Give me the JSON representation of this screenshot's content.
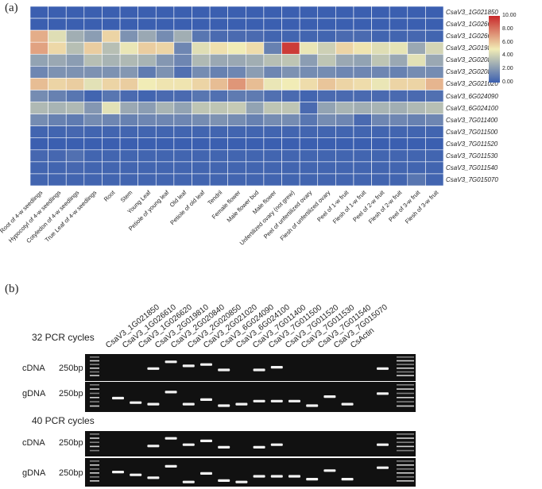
{
  "panel_a": {
    "label": "(a)",
    "rows": [
      "CsaV3_1G021850",
      "CsaV3_1G026610",
      "CsaV3_1G026620",
      "CsaV3_2G019810",
      "CsaV3_2G020840",
      "CsaV3_2G020850",
      "CsaV3_2G021020",
      "CsaV3_6G024090",
      "CsaV3_6G024100",
      "CsaV3_7G011400",
      "CsaV3_7G011500",
      "CsaV3_7G011520",
      "CsaV3_7G011530",
      "CsaV3_7G011540",
      "CsaV3_7G015070"
    ],
    "columns": [
      "Root of 4-w seedlings",
      "Hypocotyl of 4-w seedlings",
      "Cotyledon of 4-w seedlings",
      "True Leaf of 4-w seedlings",
      "Root",
      "Stem",
      "Young Leaf",
      "Petiole of young leaf",
      "Old leaf",
      "Petiole of old leaf",
      "Tendril",
      "Female flower",
      "Male flower bud",
      "Male flower",
      "Unfertilized ovary (not grew)",
      "Peel of unfertilized ovary",
      "Flesh of unfertilized ovary",
      "Peel of 1-w fruit",
      "Flesh of 1-w fruit",
      "Peel of 2-w fruit",
      "Flesh of 2-w fruit",
      "Peel of 3-w fruit",
      "Flesh of 3-w fruit"
    ],
    "colorbar": {
      "ticks": [
        "10.00",
        "8.00",
        "6.00",
        "4.00",
        "2.00",
        "0.00"
      ],
      "low": "#3b5fb0",
      "mid": "#f1ecb6",
      "high": "#c8282a"
    },
    "values": [
      [
        0,
        0,
        0,
        0,
        0,
        0,
        0,
        0,
        0,
        0,
        0,
        0,
        0,
        0,
        0,
        0,
        0,
        0,
        0,
        0,
        0,
        0,
        0
      ],
      [
        0,
        0,
        0,
        0,
        0,
        0,
        0,
        0,
        0,
        0,
        0,
        0,
        0,
        0,
        0,
        0,
        0,
        0,
        0,
        0,
        0,
        0,
        0
      ],
      [
        6.6,
        4.5,
        2.8,
        2.2,
        5.6,
        1.8,
        2.6,
        1.6,
        2.8,
        0.8,
        0.4,
        0.4,
        0.4,
        0.2,
        0.2,
        0.2,
        0.2,
        0.4,
        0.4,
        0.2,
        0.2,
        0.3,
        0.2
      ],
      [
        6.9,
        5.5,
        3.4,
        5.8,
        3.4,
        4.8,
        5.8,
        5.6,
        1.4,
        4.5,
        5.3,
        5.0,
        5.4,
        1.2,
        9.5,
        4.8,
        4.0,
        5.6,
        5.2,
        4.5,
        4.7,
        2.6,
        4.2
      ],
      [
        2.4,
        2.6,
        2.2,
        3.4,
        3.0,
        3.2,
        3.0,
        2.0,
        1.4,
        3.2,
        2.6,
        2.6,
        2.8,
        3.4,
        3.6,
        2.2,
        3.6,
        2.6,
        2.4,
        3.6,
        2.6,
        4.6,
        2.6
      ],
      [
        1.4,
        1.8,
        1.8,
        1.8,
        1.8,
        2.0,
        1.0,
        1.8,
        0.6,
        1.6,
        1.2,
        1.4,
        2.2,
        1.4,
        1.8,
        1.6,
        1.6,
        1.4,
        1.4,
        1.4,
        1.2,
        1.6,
        1.6
      ],
      [
        6.2,
        5.6,
        5.8,
        4.6,
        5.6,
        5.8,
        5.0,
        5.2,
        5.2,
        5.6,
        6.2,
        7.2,
        6.2,
        4.8,
        5.0,
        5.4,
        6.0,
        5.6,
        5.4,
        4.8,
        5.6,
        5.6,
        6.4
      ],
      [
        1.6,
        1.2,
        0.8,
        0.2,
        0.8,
        0.4,
        0.2,
        0.4,
        0.4,
        0.8,
        0.6,
        1.0,
        1.0,
        0.6,
        0.4,
        0.2,
        0.4,
        0.4,
        0.4,
        0.4,
        0.4,
        0.4,
        0.6
      ],
      [
        3.2,
        3.0,
        3.2,
        2.0,
        4.6,
        2.6,
        2.2,
        3.0,
        2.4,
        3.6,
        3.6,
        3.8,
        2.4,
        3.6,
        3.6,
        0.4,
        2.4,
        3.0,
        2.8,
        3.0,
        2.8,
        3.2,
        3.4
      ],
      [
        1.6,
        1.2,
        1.0,
        1.6,
        1.4,
        1.2,
        1.4,
        1.4,
        1.4,
        1.6,
        1.8,
        1.6,
        1.2,
        1.6,
        1.6,
        0.8,
        1.6,
        1.4,
        0.4,
        1.4,
        1.4,
        1.2,
        1.4
      ],
      [
        0.2,
        0.2,
        0.3,
        0.2,
        0.2,
        0.2,
        0.2,
        0.2,
        0.2,
        0.2,
        0.2,
        0.2,
        0.2,
        0.2,
        0.2,
        0.2,
        0.2,
        0.2,
        0.2,
        0.2,
        0.2,
        0.2,
        0.2
      ],
      [
        0,
        0,
        0,
        0,
        0,
        0,
        0,
        0,
        0,
        0,
        0,
        0,
        0,
        0,
        0,
        0,
        0,
        0,
        0,
        0,
        0,
        0,
        0
      ],
      [
        0.3,
        0.3,
        0.6,
        0.2,
        0.2,
        0.2,
        0.2,
        0.2,
        0.2,
        0.2,
        0.2,
        0.2,
        0.2,
        0.2,
        0.2,
        0.2,
        0.2,
        0.2,
        0.2,
        0.2,
        0.2,
        0.2,
        0.2
      ],
      [
        0.2,
        0.2,
        0.3,
        0.2,
        0.2,
        0.2,
        0.2,
        0.2,
        0.2,
        0.2,
        0.2,
        0.2,
        0.2,
        0.2,
        0.2,
        0.2,
        0.2,
        0.2,
        0.2,
        0.2,
        0.2,
        0.2,
        0.2
      ],
      [
        0.2,
        0.2,
        0.2,
        0.2,
        0.2,
        0.2,
        0.2,
        0.2,
        0.2,
        0.2,
        0.2,
        0.2,
        0.2,
        0.2,
        0.2,
        0.2,
        0.2,
        0.2,
        0.2,
        0.2,
        0.2,
        0.8,
        0.2
      ]
    ]
  },
  "panel_b": {
    "label": "(b)",
    "lanes": [
      "CsaV3_1G021850",
      "CsaV3_1G026610",
      "CsaV3_1G026620",
      "CsaV3_2G019810",
      "CsaV3_2G020840",
      "CsaV3_2G020850",
      "CsaV3_2G021020",
      "CsaV3_6G024090",
      "CsaV3_6G024100",
      "CsaV3_7G011400",
      "CsaV3_7G011500",
      "CsaV3_7G011520",
      "CsaV3_7G011530",
      "CsaV3_7G011540",
      "CsaV3_7G015070",
      "CsActin"
    ],
    "cycles_32": "32 PCR cycles",
    "cycles_40": "40 PCR cycles",
    "cdna_label": "cDNA",
    "gdna_label": "gDNA",
    "marker_label": "250bp",
    "gels": {
      "c32": [
        null,
        null,
        0.55,
        0.3,
        0.45,
        0.4,
        0.6,
        null,
        0.6,
        0.5,
        null,
        null,
        null,
        null,
        null,
        0.55
      ],
      "g32": [
        0.55,
        0.7,
        0.75,
        0.35,
        0.75,
        0.6,
        0.8,
        0.75,
        0.65,
        0.65,
        0.65,
        0.8,
        0.5,
        0.75,
        null,
        0.4
      ],
      "c40": [
        null,
        null,
        0.6,
        0.3,
        0.55,
        0.4,
        0.65,
        null,
        0.65,
        0.55,
        null,
        null,
        null,
        null,
        null,
        0.55
      ],
      "g40": [
        0.5,
        0.6,
        0.7,
        0.3,
        0.85,
        0.55,
        0.8,
        0.85,
        0.65,
        0.65,
        0.65,
        0.75,
        0.45,
        0.75,
        null,
        0.35
      ]
    }
  }
}
